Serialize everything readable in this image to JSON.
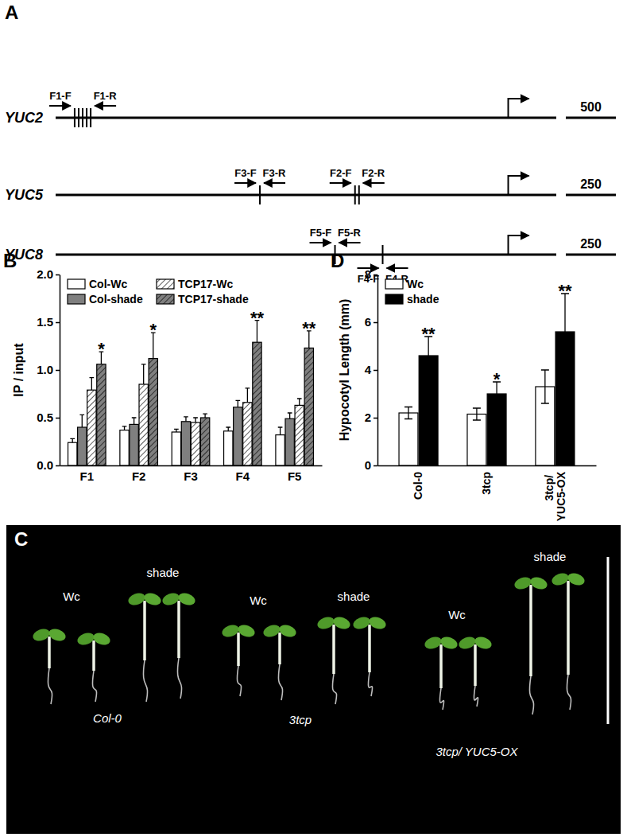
{
  "panel_labels": [
    "A",
    "B",
    "C",
    "D"
  ],
  "diagram": {
    "genes": [
      {
        "name": "YUC2",
        "range": [
          -4520,
          480
        ],
        "tss": 0,
        "scale_bar": 500,
        "fragments": [
          {
            "forward": "F1-F",
            "reverse": "F1-R",
            "sites": [
              -4330,
              -4290,
              -4250,
              -4210,
              -4170
            ]
          }
        ]
      },
      {
        "name": "YUC5",
        "range": [
          -2260,
          240
        ],
        "tss": 0,
        "scale_bar": 250,
        "fragments": [
          {
            "forward": "F3-F",
            "reverse": "F3-R",
            "sites": [
              -1240
            ]
          },
          {
            "forward": "F2-F",
            "reverse": "F2-R",
            "sites": [
              -765,
              -745
            ]
          }
        ]
      },
      {
        "name": "YUC8",
        "range": [
          -2260,
          240
        ],
        "tss": 0,
        "scale_bar": 250,
        "fragments": [
          {
            "forward": "F5-F",
            "reverse": "F5-R",
            "sites": [
              -865
            ]
          },
          {
            "forward": "F4-F",
            "reverse": "F4-R",
            "sites": [
              -627
            ]
          }
        ]
      }
    ]
  },
  "photo": {
    "groups": [
      {
        "genotype": "Col-0",
        "conditions": [
          "Wc",
          "shade"
        ]
      },
      {
        "genotype": "3tcp",
        "conditions": [
          "Wc",
          "shade"
        ]
      },
      {
        "genotype": "3tcp/ YUC5-OX",
        "conditions": [
          "Wc",
          "shade"
        ]
      }
    ]
  },
  "chart_data": [
    {
      "type": "bar",
      "categories": [
        "F1",
        "F2",
        "F3",
        "F4",
        "F5"
      ],
      "ylabel": "IP / input",
      "ylim": [
        0,
        2
      ],
      "yticks": [
        {
          "value": 0,
          "label": "0.0"
        },
        0.5,
        {
          "value": 1,
          "label": "1.0"
        },
        1.5,
        {
          "value": 2,
          "label": "2.0"
        }
      ],
      "legend": "upper left",
      "series": [
        {
          "name": "Col-Wc",
          "color": "#ffffff",
          "values": [
            0.24,
            0.37,
            0.35,
            0.36,
            0.32
          ],
          "errors": [
            0.04,
            0.04,
            0.03,
            0.04,
            0.08
          ]
        },
        {
          "name": "Col-shade",
          "color": "#7f7f7f",
          "values": [
            0.4,
            0.43,
            0.46,
            0.61,
            0.49
          ],
          "errors": [
            0.13,
            0.07,
            0.05,
            0.07,
            0.06
          ]
        },
        {
          "name": "TCP17-Wc",
          "color": "#ffffff",
          "values": [
            0.79,
            0.85,
            0.45,
            0.66,
            0.63
          ],
          "errors": [
            0.13,
            0.21,
            0.05,
            0.15,
            0.07
          ]
        },
        {
          "name": "TCP17-shade",
          "color": "#7f7f7f",
          "values": [
            1.06,
            1.12,
            0.5,
            1.29,
            1.23
          ],
          "errors": [
            0.13,
            0.27,
            0.04,
            0.23,
            0.18
          ],
          "significance": [
            "*",
            "*",
            null,
            "**",
            "**"
          ]
        }
      ]
    },
    {
      "type": "bar",
      "categories": [
        "Col-0",
        "3tcp",
        "3tcp/ YUC5-OX"
      ],
      "ylabel": "Hypocotyl Length (mm)",
      "ylim": [
        0,
        8
      ],
      "yticks": [
        0,
        2,
        4,
        6,
        8
      ],
      "legend": "upper left",
      "series": [
        {
          "name": "Wc",
          "color": "#ffffff",
          "values": [
            2.2,
            2.15,
            3.3
          ],
          "errors": [
            0.25,
            0.25,
            0.7
          ]
        },
        {
          "name": "shade",
          "color": "#000000",
          "values": [
            4.6,
            3.0,
            5.6
          ],
          "errors": [
            0.8,
            0.5,
            1.6
          ],
          "significance": [
            "**",
            "*",
            "**"
          ]
        }
      ]
    }
  ]
}
